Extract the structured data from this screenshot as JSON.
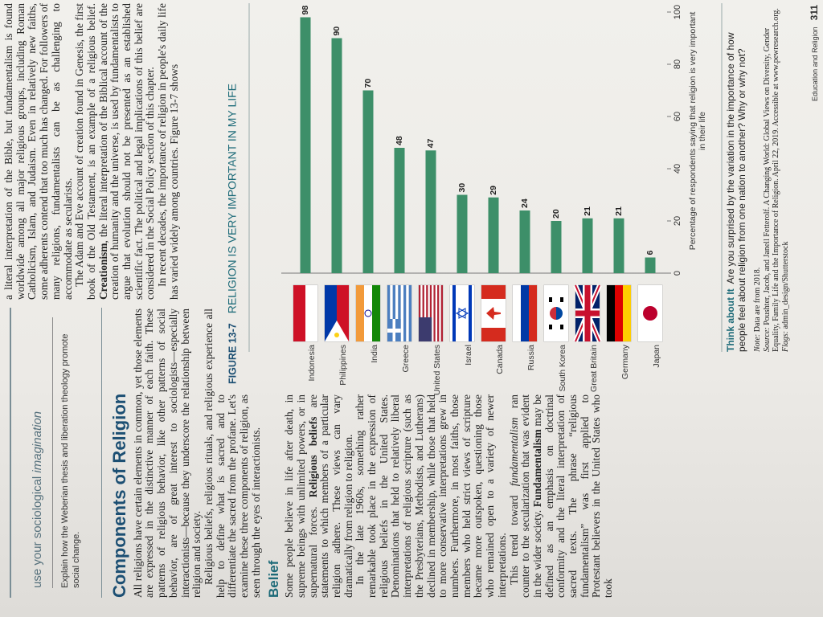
{
  "header": {
    "section": "Education and Religion",
    "page_number": 311
  },
  "sidebar": {
    "title": "use your sociological",
    "title_italic": "imagination",
    "body": "Explain how the Weberian thesis and liberation theology promote social change."
  },
  "left_column": [
    {
      "kind": "heading",
      "text": "Components of Religion"
    },
    {
      "kind": "paragraph",
      "runs": [
        "All religions have certain elements in common, yet those elements are expressed in the distinctive manner of each faith. These patterns of religious behavior, like other patterns of social behavior, are of great interest to sociologists—especially interactionists—because they underscore the relationship between religion and society."
      ]
    },
    {
      "kind": "paragraph",
      "runs": [
        "Religious beliefs, religious rituals, and religious experience all help to define what is sacred and to differentiate the sacred from the profane. Let's examine these three components of religion, as seen through the eyes of interactionists."
      ]
    },
    {
      "kind": "subheading",
      "text": "Belief"
    },
    {
      "kind": "paragraph",
      "runs": [
        "Some people believe in life after death, in supreme beings with unlimited powers, or in supernatural forces. ",
        {
          "text": "Religious beliefs",
          "bold": true
        },
        " are statements to which members of a particular religion adhere. These views can vary dramatically from religion to religion."
      ]
    },
    {
      "kind": "paragraph",
      "runs": [
        "In the late 1960s, something rather remarkable took place in the expression of religious beliefs in the United States. Denominations that held to relatively liberal interpretations of religious scripture (such as the Presbyterians, Methodists, and Lutherans) declined in membership, while those that held to more conservative interpretations grew in numbers. Furthermore, in most faiths, those members who held strict views of scripture became more outspoken, questioning those who remained open to a variety of newer interpretations."
      ]
    },
    {
      "kind": "paragraph",
      "runs": [
        "This trend toward ",
        {
          "text": "fundamentalism",
          "italic": true
        },
        " ran counter to the secularization that was evident in the wider society. ",
        {
          "text": "Fundamentalism",
          "bold": true
        },
        " may be defined as an emphasis on doctrinal conformity and the literal interpretation of sacred texts. The phrase “religious fundamentalism” was first applied to Protestant believers in the United States who took"
      ]
    }
  ],
  "right_column": [
    {
      "kind": "continuation",
      "runs": [
        "a literal interpretation of the Bible, but fundamentalism is found worldwide among all major religious groups, including Roman Catholicism, Islam, and Judaism. Even in relatively new faiths, some adherents contend that too much has changed. For followers of many religions, fundamentalists can be as challenging to accommodate as secularists."
      ]
    },
    {
      "kind": "paragraph",
      "runs": [
        "The Adam and Eve account of creation found in Genesis, the first book of the Old Testament, is an example of a religious belief. ",
        {
          "text": "Creationism",
          "bold": true
        },
        ", the literal interpretation of the Biblical account of the creation of humanity and the universe, is used by fundamentalists to argue that evolution should not be presented as an established scientific fact. The political and legal implications of this belief are considered in the Social Policy section of this chapter."
      ]
    },
    {
      "kind": "paragraph",
      "runs": [
        "In recent decades, the importance of religion in people's daily life has varied widely among countries. Figure 13-7 shows"
      ]
    }
  ],
  "chart_data": {
    "type": "bar",
    "orientation": "horizontal",
    "figure_label": "FIGURE 13-7",
    "title": "RELIGION IS VERY IMPORTANT IN MY LIFE",
    "x_label": "Percentage of respondents saying that religion is very important in their life",
    "categories": [
      "Indonesia",
      "Philippines",
      "India",
      "Greece",
      "United States",
      "Israel",
      "Canada",
      "Russia",
      "South Korea",
      "Great Britain",
      "Germany",
      "Japan"
    ],
    "values": [
      98,
      90,
      70,
      48,
      47,
      30,
      29,
      24,
      20,
      21,
      21,
      6
    ],
    "color": "#3d8f69",
    "xlim": [
      0,
      100
    ],
    "xticks": [
      0,
      20,
      40,
      60,
      80,
      100
    ],
    "grid": false
  },
  "figure_notes": {
    "think_label": "Think about It",
    "think_text": "Are you surprised by the variation in the importance of how people feel about religion from one nation to another? Why or why not?",
    "note_label": "Note:",
    "note": "Data are from 2018.",
    "source_label": "Source:",
    "source": "Poushter, Jacob, and Janell Fetterolf. A Changing World: Global Views on Diversity, Gender Equality, Family Life and the Importance of Religion. April 22, 2019. Accessible at www.pewresearch.org.",
    "flags_label": "Flags:",
    "flags": "admin_design/Shutterstock"
  }
}
